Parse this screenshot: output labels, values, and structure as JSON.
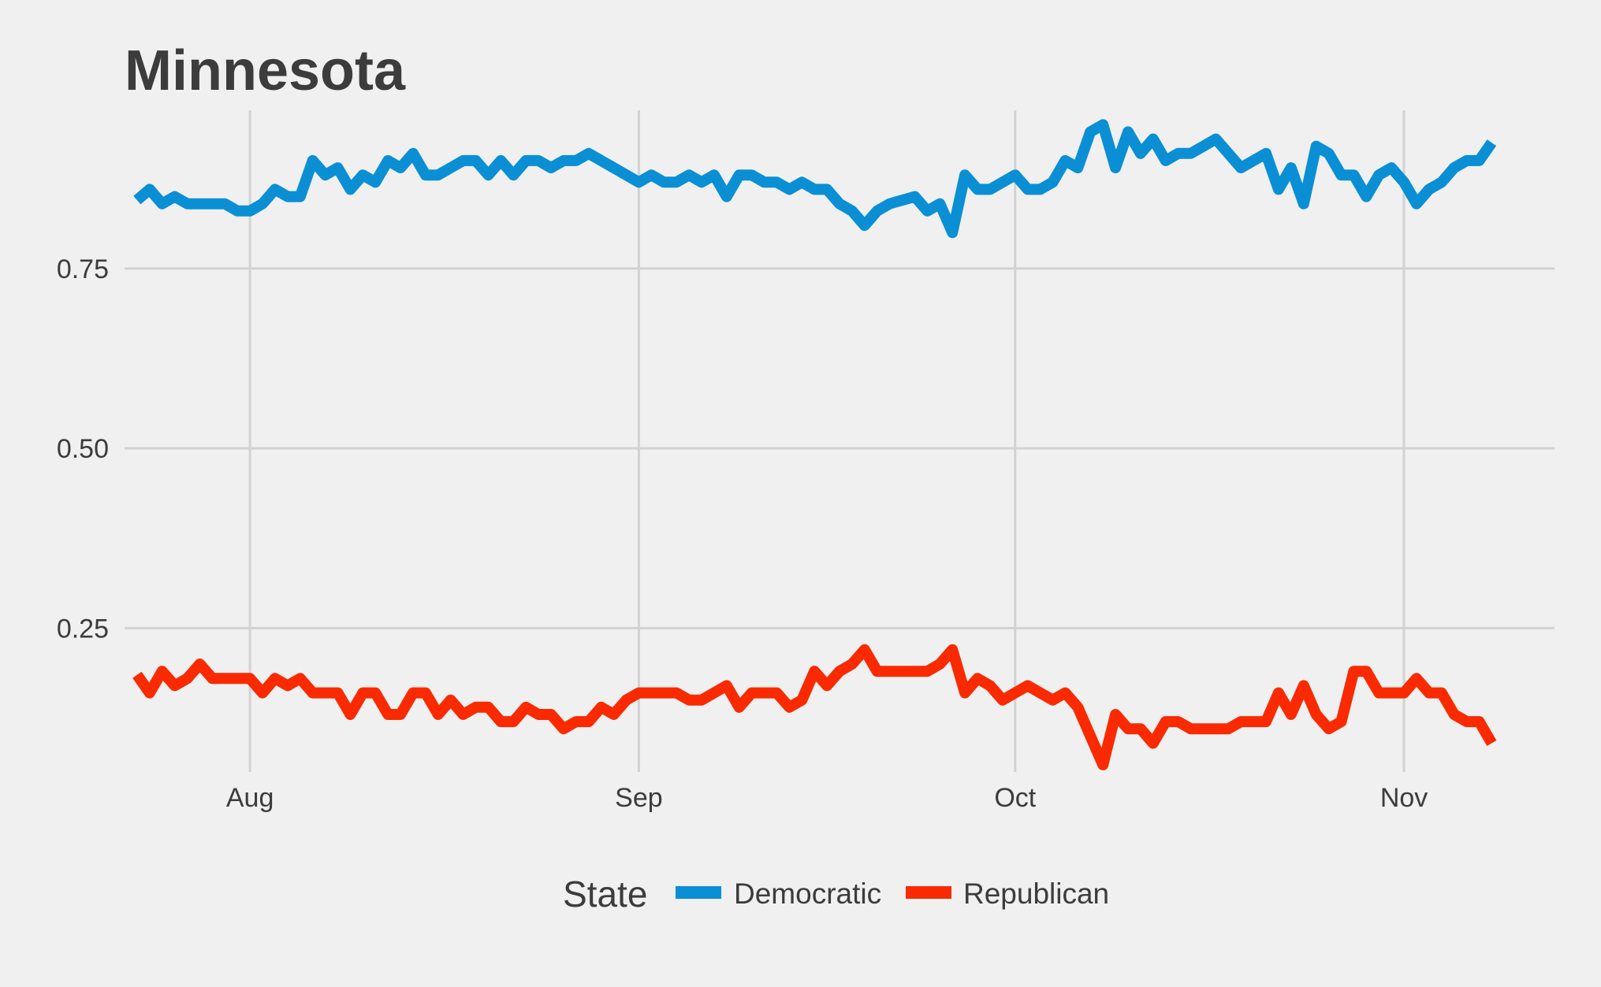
{
  "chart_data": {
    "type": "line",
    "title": "Minnesota",
    "xlabel": "",
    "ylabel": "",
    "x_ticks": [
      {
        "label": "Aug",
        "date": "2020-08-01"
      },
      {
        "label": "Sep",
        "date": "2020-09-01"
      },
      {
        "label": "Oct",
        "date": "2020-10-01"
      },
      {
        "label": "Nov",
        "date": "2020-11-01"
      }
    ],
    "y_ticks": [
      {
        "label": "0.25",
        "value": 0.25
      },
      {
        "label": "0.50",
        "value": 0.5
      },
      {
        "label": "0.75",
        "value": 0.75
      }
    ],
    "xlim": [
      "2020-07-22",
      "2020-11-13"
    ],
    "ylim": [
      0.05,
      0.97
    ],
    "grid": true,
    "legend": {
      "title": "State",
      "position": "bottom"
    },
    "series": [
      {
        "name": "Democratic",
        "color": "#0a8fd4",
        "points": [
          [
            "2020-07-23",
            0.845
          ],
          [
            "2020-07-24",
            0.86
          ],
          [
            "2020-07-25",
            0.84
          ],
          [
            "2020-07-26",
            0.85
          ],
          [
            "2020-07-27",
            0.84
          ],
          [
            "2020-07-28",
            0.84
          ],
          [
            "2020-07-29",
            0.84
          ],
          [
            "2020-07-30",
            0.84
          ],
          [
            "2020-07-31",
            0.83
          ],
          [
            "2020-08-01",
            0.83
          ],
          [
            "2020-08-02",
            0.84
          ],
          [
            "2020-08-03",
            0.86
          ],
          [
            "2020-08-04",
            0.85
          ],
          [
            "2020-08-05",
            0.85
          ],
          [
            "2020-08-06",
            0.9
          ],
          [
            "2020-08-07",
            0.88
          ],
          [
            "2020-08-08",
            0.89
          ],
          [
            "2020-08-09",
            0.86
          ],
          [
            "2020-08-10",
            0.88
          ],
          [
            "2020-08-11",
            0.87
          ],
          [
            "2020-08-12",
            0.9
          ],
          [
            "2020-08-13",
            0.89
          ],
          [
            "2020-08-14",
            0.91
          ],
          [
            "2020-08-15",
            0.88
          ],
          [
            "2020-08-16",
            0.88
          ],
          [
            "2020-08-17",
            0.89
          ],
          [
            "2020-08-18",
            0.9
          ],
          [
            "2020-08-19",
            0.9
          ],
          [
            "2020-08-20",
            0.88
          ],
          [
            "2020-08-21",
            0.9
          ],
          [
            "2020-08-22",
            0.88
          ],
          [
            "2020-08-23",
            0.9
          ],
          [
            "2020-08-24",
            0.9
          ],
          [
            "2020-08-25",
            0.89
          ],
          [
            "2020-08-26",
            0.9
          ],
          [
            "2020-08-27",
            0.9
          ],
          [
            "2020-08-28",
            0.91
          ],
          [
            "2020-08-29",
            0.9
          ],
          [
            "2020-08-30",
            0.89
          ],
          [
            "2020-08-31",
            0.88
          ],
          [
            "2020-09-01",
            0.87
          ],
          [
            "2020-09-02",
            0.88
          ],
          [
            "2020-09-03",
            0.87
          ],
          [
            "2020-09-04",
            0.87
          ],
          [
            "2020-09-05",
            0.88
          ],
          [
            "2020-09-06",
            0.87
          ],
          [
            "2020-09-07",
            0.88
          ],
          [
            "2020-09-08",
            0.85
          ],
          [
            "2020-09-09",
            0.88
          ],
          [
            "2020-09-10",
            0.88
          ],
          [
            "2020-09-11",
            0.87
          ],
          [
            "2020-09-12",
            0.87
          ],
          [
            "2020-09-13",
            0.86
          ],
          [
            "2020-09-14",
            0.87
          ],
          [
            "2020-09-15",
            0.86
          ],
          [
            "2020-09-16",
            0.86
          ],
          [
            "2020-09-17",
            0.84
          ],
          [
            "2020-09-18",
            0.83
          ],
          [
            "2020-09-19",
            0.81
          ],
          [
            "2020-09-20",
            0.83
          ],
          [
            "2020-09-21",
            0.84
          ],
          [
            "2020-09-22",
            0.845
          ],
          [
            "2020-09-23",
            0.85
          ],
          [
            "2020-09-24",
            0.83
          ],
          [
            "2020-09-25",
            0.84
          ],
          [
            "2020-09-26",
            0.8
          ],
          [
            "2020-09-27",
            0.88
          ],
          [
            "2020-09-28",
            0.86
          ],
          [
            "2020-09-29",
            0.86
          ],
          [
            "2020-09-30",
            0.87
          ],
          [
            "2020-10-01",
            0.88
          ],
          [
            "2020-10-02",
            0.86
          ],
          [
            "2020-10-03",
            0.86
          ],
          [
            "2020-10-04",
            0.87
          ],
          [
            "2020-10-05",
            0.9
          ],
          [
            "2020-10-06",
            0.89
          ],
          [
            "2020-10-07",
            0.94
          ],
          [
            "2020-10-08",
            0.95
          ],
          [
            "2020-10-09",
            0.89
          ],
          [
            "2020-10-10",
            0.94
          ],
          [
            "2020-10-11",
            0.91
          ],
          [
            "2020-10-12",
            0.93
          ],
          [
            "2020-10-13",
            0.9
          ],
          [
            "2020-10-14",
            0.91
          ],
          [
            "2020-10-15",
            0.91
          ],
          [
            "2020-10-16",
            0.92
          ],
          [
            "2020-10-17",
            0.93
          ],
          [
            "2020-10-18",
            0.91
          ],
          [
            "2020-10-19",
            0.89
          ],
          [
            "2020-10-20",
            0.9
          ],
          [
            "2020-10-21",
            0.91
          ],
          [
            "2020-10-22",
            0.86
          ],
          [
            "2020-10-23",
            0.89
          ],
          [
            "2020-10-24",
            0.84
          ],
          [
            "2020-10-25",
            0.92
          ],
          [
            "2020-10-26",
            0.91
          ],
          [
            "2020-10-27",
            0.88
          ],
          [
            "2020-10-28",
            0.88
          ],
          [
            "2020-10-29",
            0.85
          ],
          [
            "2020-10-30",
            0.88
          ],
          [
            "2020-10-31",
            0.89
          ],
          [
            "2020-11-01",
            0.87
          ],
          [
            "2020-11-02",
            0.84
          ],
          [
            "2020-11-03",
            0.86
          ],
          [
            "2020-11-04",
            0.87
          ],
          [
            "2020-11-05",
            0.89
          ],
          [
            "2020-11-06",
            0.9
          ],
          [
            "2020-11-07",
            0.9
          ],
          [
            "2020-11-08",
            0.925
          ]
        ]
      },
      {
        "name": "Republican",
        "color": "#fa2a00",
        "points": [
          [
            "2020-07-23",
            0.185
          ],
          [
            "2020-07-24",
            0.16
          ],
          [
            "2020-07-25",
            0.19
          ],
          [
            "2020-07-26",
            0.17
          ],
          [
            "2020-07-27",
            0.18
          ],
          [
            "2020-07-28",
            0.2
          ],
          [
            "2020-07-29",
            0.18
          ],
          [
            "2020-07-30",
            0.18
          ],
          [
            "2020-07-31",
            0.18
          ],
          [
            "2020-08-01",
            0.18
          ],
          [
            "2020-08-02",
            0.16
          ],
          [
            "2020-08-03",
            0.18
          ],
          [
            "2020-08-04",
            0.17
          ],
          [
            "2020-08-05",
            0.18
          ],
          [
            "2020-08-06",
            0.16
          ],
          [
            "2020-08-07",
            0.16
          ],
          [
            "2020-08-08",
            0.16
          ],
          [
            "2020-08-09",
            0.13
          ],
          [
            "2020-08-10",
            0.16
          ],
          [
            "2020-08-11",
            0.16
          ],
          [
            "2020-08-12",
            0.13
          ],
          [
            "2020-08-13",
            0.13
          ],
          [
            "2020-08-14",
            0.16
          ],
          [
            "2020-08-15",
            0.16
          ],
          [
            "2020-08-16",
            0.13
          ],
          [
            "2020-08-17",
            0.15
          ],
          [
            "2020-08-18",
            0.13
          ],
          [
            "2020-08-19",
            0.14
          ],
          [
            "2020-08-20",
            0.14
          ],
          [
            "2020-08-21",
            0.12
          ],
          [
            "2020-08-22",
            0.12
          ],
          [
            "2020-08-23",
            0.14
          ],
          [
            "2020-08-24",
            0.13
          ],
          [
            "2020-08-25",
            0.13
          ],
          [
            "2020-08-26",
            0.11
          ],
          [
            "2020-08-27",
            0.12
          ],
          [
            "2020-08-28",
            0.12
          ],
          [
            "2020-08-29",
            0.14
          ],
          [
            "2020-08-30",
            0.13
          ],
          [
            "2020-08-31",
            0.15
          ],
          [
            "2020-09-01",
            0.16
          ],
          [
            "2020-09-02",
            0.16
          ],
          [
            "2020-09-03",
            0.16
          ],
          [
            "2020-09-04",
            0.16
          ],
          [
            "2020-09-05",
            0.15
          ],
          [
            "2020-09-06",
            0.15
          ],
          [
            "2020-09-07",
            0.16
          ],
          [
            "2020-09-08",
            0.17
          ],
          [
            "2020-09-09",
            0.14
          ],
          [
            "2020-09-10",
            0.16
          ],
          [
            "2020-09-11",
            0.16
          ],
          [
            "2020-09-12",
            0.16
          ],
          [
            "2020-09-13",
            0.14
          ],
          [
            "2020-09-14",
            0.15
          ],
          [
            "2020-09-15",
            0.19
          ],
          [
            "2020-09-16",
            0.17
          ],
          [
            "2020-09-17",
            0.19
          ],
          [
            "2020-09-18",
            0.2
          ],
          [
            "2020-09-19",
            0.22
          ],
          [
            "2020-09-20",
            0.19
          ],
          [
            "2020-09-21",
            0.19
          ],
          [
            "2020-09-22",
            0.19
          ],
          [
            "2020-09-23",
            0.19
          ],
          [
            "2020-09-24",
            0.19
          ],
          [
            "2020-09-25",
            0.2
          ],
          [
            "2020-09-26",
            0.22
          ],
          [
            "2020-09-27",
            0.16
          ],
          [
            "2020-09-28",
            0.18
          ],
          [
            "2020-09-29",
            0.17
          ],
          [
            "2020-09-30",
            0.15
          ],
          [
            "2020-10-01",
            0.16
          ],
          [
            "2020-10-02",
            0.17
          ],
          [
            "2020-10-03",
            0.16
          ],
          [
            "2020-10-04",
            0.15
          ],
          [
            "2020-10-05",
            0.16
          ],
          [
            "2020-10-06",
            0.14
          ],
          [
            "2020-10-07",
            0.1
          ],
          [
            "2020-10-08",
            0.06
          ],
          [
            "2020-10-09",
            0.13
          ],
          [
            "2020-10-10",
            0.11
          ],
          [
            "2020-10-11",
            0.11
          ],
          [
            "2020-10-12",
            0.09
          ],
          [
            "2020-10-13",
            0.12
          ],
          [
            "2020-10-14",
            0.12
          ],
          [
            "2020-10-15",
            0.11
          ],
          [
            "2020-10-16",
            0.11
          ],
          [
            "2020-10-17",
            0.11
          ],
          [
            "2020-10-18",
            0.11
          ],
          [
            "2020-10-19",
            0.12
          ],
          [
            "2020-10-20",
            0.12
          ],
          [
            "2020-10-21",
            0.12
          ],
          [
            "2020-10-22",
            0.16
          ],
          [
            "2020-10-23",
            0.13
          ],
          [
            "2020-10-24",
            0.17
          ],
          [
            "2020-10-25",
            0.13
          ],
          [
            "2020-10-26",
            0.11
          ],
          [
            "2020-10-27",
            0.12
          ],
          [
            "2020-10-28",
            0.19
          ],
          [
            "2020-10-29",
            0.19
          ],
          [
            "2020-10-30",
            0.16
          ],
          [
            "2020-10-31",
            0.16
          ],
          [
            "2020-11-01",
            0.16
          ],
          [
            "2020-11-02",
            0.18
          ],
          [
            "2020-11-03",
            0.16
          ],
          [
            "2020-11-04",
            0.16
          ],
          [
            "2020-11-05",
            0.13
          ],
          [
            "2020-11-06",
            0.12
          ],
          [
            "2020-11-07",
            0.12
          ],
          [
            "2020-11-08",
            0.09
          ]
        ]
      }
    ]
  }
}
